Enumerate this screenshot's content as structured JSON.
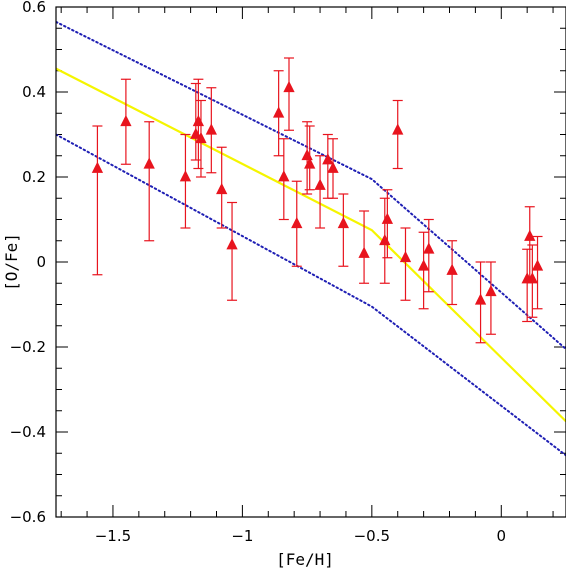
{
  "chart_data": {
    "type": "scatter",
    "title": "",
    "xlabel": "[Fe/H]",
    "ylabel": "[O/Fe]",
    "xlim": [
      -1.72,
      0.25
    ],
    "ylim": [
      -0.6,
      0.6
    ],
    "x_ticks": [
      -1.5,
      -1,
      -0.5,
      0
    ],
    "x_tick_labels": [
      "−1.5",
      "−1",
      "−0.5",
      "0"
    ],
    "y_ticks": [
      -0.6,
      -0.4,
      -0.2,
      0,
      0.2,
      0.4,
      0.6
    ],
    "y_tick_labels": [
      "−0.6",
      "−0.4",
      "−0.2",
      "0",
      "0.2",
      "0.4",
      "0.6"
    ],
    "grid": false,
    "colors": {
      "points": "#e8141e",
      "model": "#f5f500",
      "bounds": "#1f1fb4",
      "axes": "#000000"
    },
    "series": [
      {
        "kind": "errorbar",
        "marker": "filled-triangle",
        "points": [
          {
            "x": -1.56,
            "y": 0.22,
            "lo": -0.03,
            "hi": 0.32
          },
          {
            "x": -1.45,
            "y": 0.33,
            "lo": 0.23,
            "hi": 0.43
          },
          {
            "x": -1.36,
            "y": 0.23,
            "lo": 0.05,
            "hi": 0.33
          },
          {
            "x": -1.22,
            "y": 0.2,
            "lo": 0.08,
            "hi": 0.3
          },
          {
            "x": -1.18,
            "y": 0.3,
            "lo": 0.24,
            "hi": 0.42
          },
          {
            "x": -1.17,
            "y": 0.33,
            "lo": 0.22,
            "hi": 0.43
          },
          {
            "x": -1.16,
            "y": 0.29,
            "lo": 0.2,
            "hi": 0.38
          },
          {
            "x": -1.12,
            "y": 0.31,
            "lo": 0.21,
            "hi": 0.41
          },
          {
            "x": -1.08,
            "y": 0.17,
            "lo": 0.08,
            "hi": 0.27
          },
          {
            "x": -1.04,
            "y": 0.04,
            "lo": -0.09,
            "hi": 0.14
          },
          {
            "x": -0.86,
            "y": 0.35,
            "lo": 0.25,
            "hi": 0.45
          },
          {
            "x": -0.84,
            "y": 0.2,
            "lo": 0.1,
            "hi": 0.29
          },
          {
            "x": -0.82,
            "y": 0.41,
            "lo": 0.31,
            "hi": 0.48
          },
          {
            "x": -0.79,
            "y": 0.09,
            "lo": -0.01,
            "hi": 0.19
          },
          {
            "x": -0.75,
            "y": 0.25,
            "lo": 0.16,
            "hi": 0.33
          },
          {
            "x": -0.74,
            "y": 0.23,
            "lo": 0.17,
            "hi": 0.32
          },
          {
            "x": -0.7,
            "y": 0.18,
            "lo": 0.08,
            "hi": 0.25
          },
          {
            "x": -0.67,
            "y": 0.24,
            "lo": 0.15,
            "hi": 0.3
          },
          {
            "x": -0.65,
            "y": 0.22,
            "lo": 0.15,
            "hi": 0.29
          },
          {
            "x": -0.61,
            "y": 0.09,
            "lo": -0.01,
            "hi": 0.16
          },
          {
            "x": -0.53,
            "y": 0.02,
            "lo": -0.05,
            "hi": 0.12
          },
          {
            "x": -0.45,
            "y": 0.05,
            "lo": -0.05,
            "hi": 0.15
          },
          {
            "x": -0.44,
            "y": 0.1,
            "lo": 0.01,
            "hi": 0.17
          },
          {
            "x": -0.4,
            "y": 0.31,
            "lo": 0.22,
            "hi": 0.38
          },
          {
            "x": -0.37,
            "y": 0.01,
            "lo": -0.09,
            "hi": 0.08
          },
          {
            "x": -0.3,
            "y": -0.01,
            "lo": -0.11,
            "hi": 0.07
          },
          {
            "x": -0.28,
            "y": 0.03,
            "lo": -0.07,
            "hi": 0.1
          },
          {
            "x": -0.19,
            "y": -0.02,
            "lo": -0.1,
            "hi": 0.05
          },
          {
            "x": -0.08,
            "y": -0.09,
            "lo": -0.19,
            "hi": 0.0
          },
          {
            "x": -0.04,
            "y": -0.07,
            "lo": -0.17,
            "hi": 0.0
          },
          {
            "x": 0.11,
            "y": 0.06,
            "lo": -0.04,
            "hi": 0.13
          },
          {
            "x": 0.1,
            "y": -0.04,
            "lo": -0.14,
            "hi": 0.03
          },
          {
            "x": 0.12,
            "y": -0.04,
            "lo": -0.13,
            "hi": 0.04
          },
          {
            "x": 0.14,
            "y": -0.01,
            "lo": -0.11,
            "hi": 0.06
          }
        ]
      },
      {
        "kind": "line",
        "style": "solid",
        "color_key": "model",
        "points": [
          [
            -1.72,
            0.455
          ],
          [
            -0.5,
            0.075
          ],
          [
            0.25,
            -0.375
          ]
        ]
      },
      {
        "kind": "line",
        "style": "dotted",
        "color_key": "bounds",
        "points": [
          [
            -1.72,
            0.565
          ],
          [
            -0.5,
            0.195
          ],
          [
            0.25,
            -0.205
          ]
        ]
      },
      {
        "kind": "line",
        "style": "dotted",
        "color_key": "bounds",
        "points": [
          [
            -1.72,
            0.3
          ],
          [
            -0.5,
            -0.105
          ],
          [
            0.25,
            -0.455
          ]
        ]
      }
    ]
  }
}
